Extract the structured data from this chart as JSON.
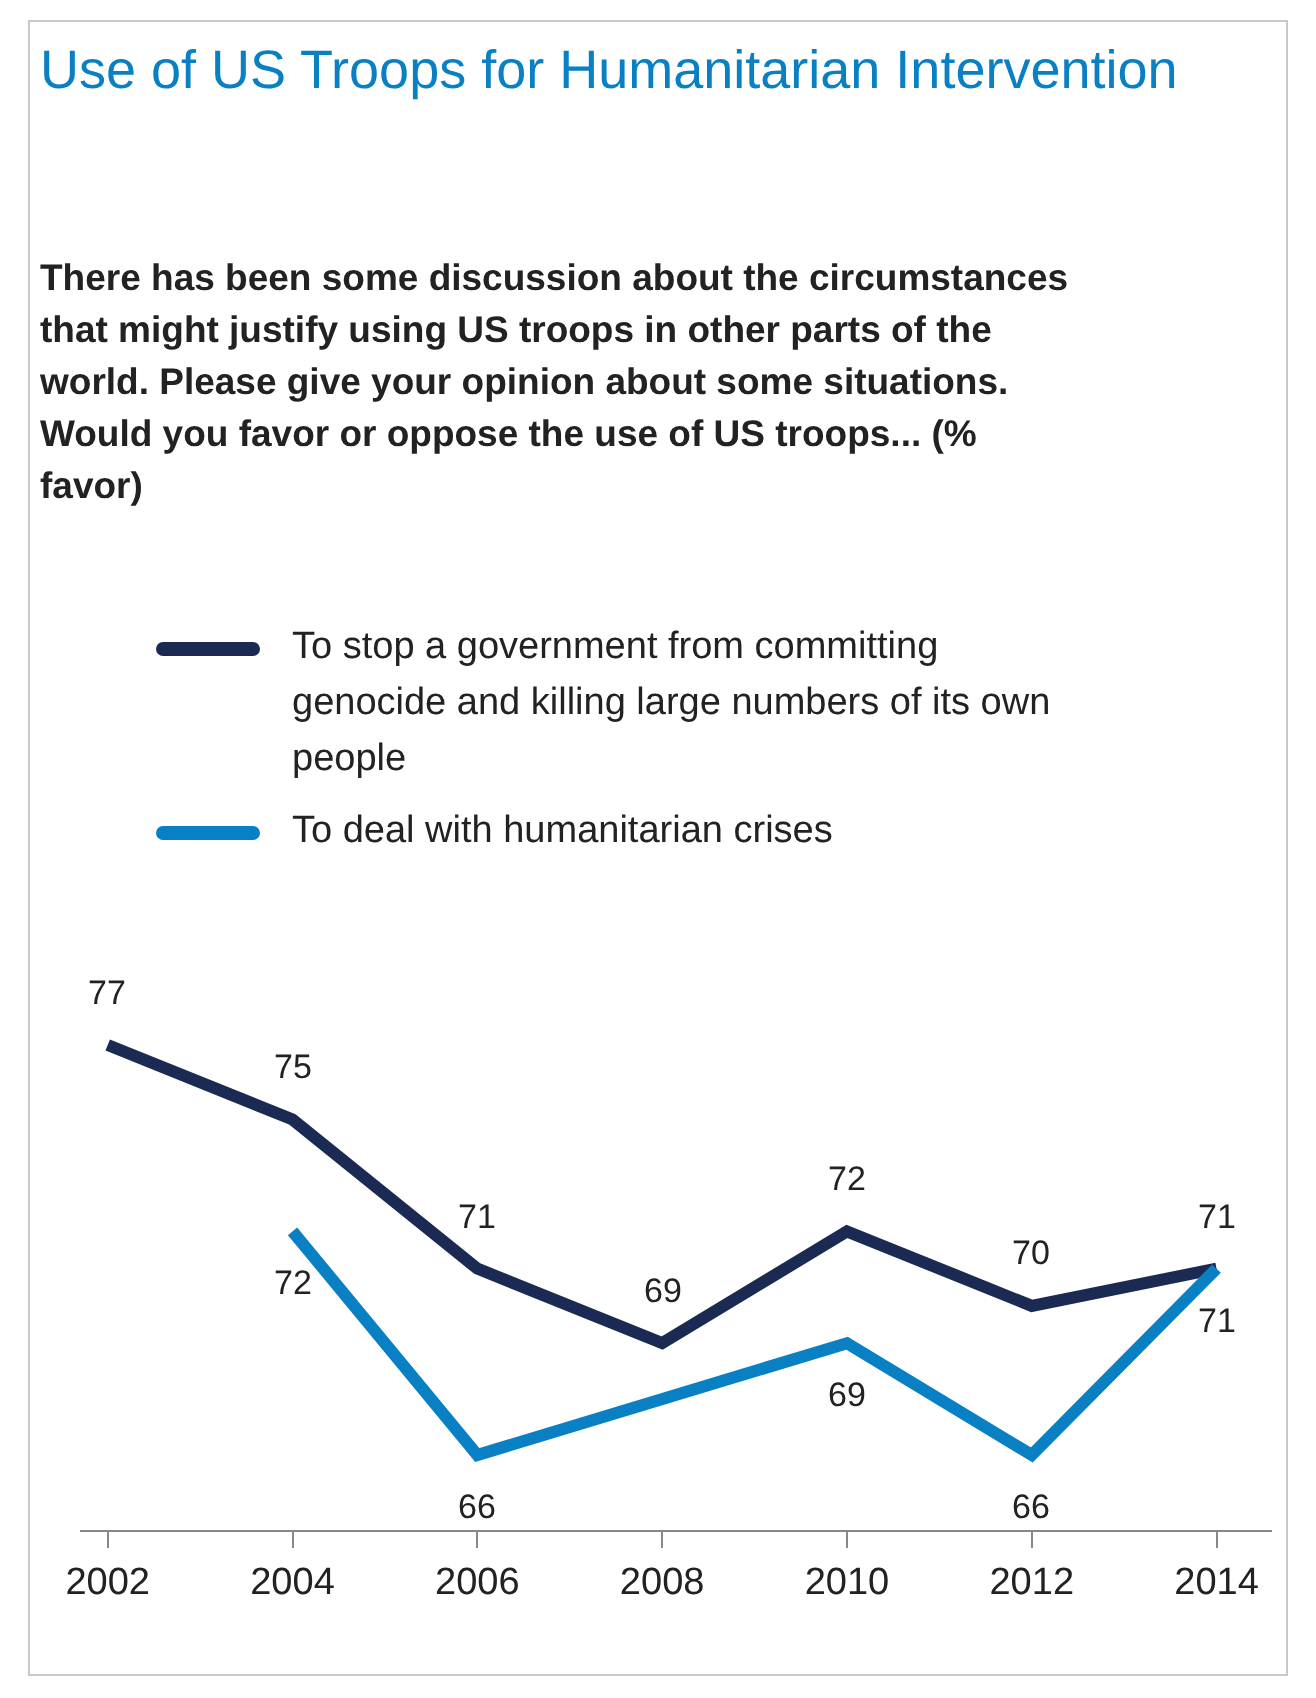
{
  "chart_data": {
    "type": "line",
    "title": "Use of US Troops for Humanitarian Intervention",
    "subtitle": "There has been some discussion about the circumstances that might justify using US troops in other parts of the world. Please give your opinion about some situations. Would you favor or oppose the use of US troops... (% favor)",
    "x": [
      2002,
      2004,
      2006,
      2008,
      2010,
      2012,
      2014
    ],
    "xlim": [
      2001.7,
      2014.6
    ],
    "xticks": [
      2002,
      2004,
      2006,
      2008,
      2010,
      2012,
      2014
    ],
    "series": [
      {
        "name": "To stop a government from committing genocide and killing large numbers of its own people",
        "color": "#1b2a52",
        "values": [
          77,
          75,
          71,
          69,
          72,
          70,
          71
        ]
      },
      {
        "name": "To deal with humanitarian crises",
        "color": "#0a80c4",
        "x": [
          2004,
          2006,
          2010,
          2012,
          2014
        ],
        "values": [
          72,
          66,
          69,
          66,
          71
        ]
      }
    ],
    "data_labels": true,
    "legend": "top",
    "grid": false,
    "marker": "none",
    "tick_labels": "x"
  }
}
